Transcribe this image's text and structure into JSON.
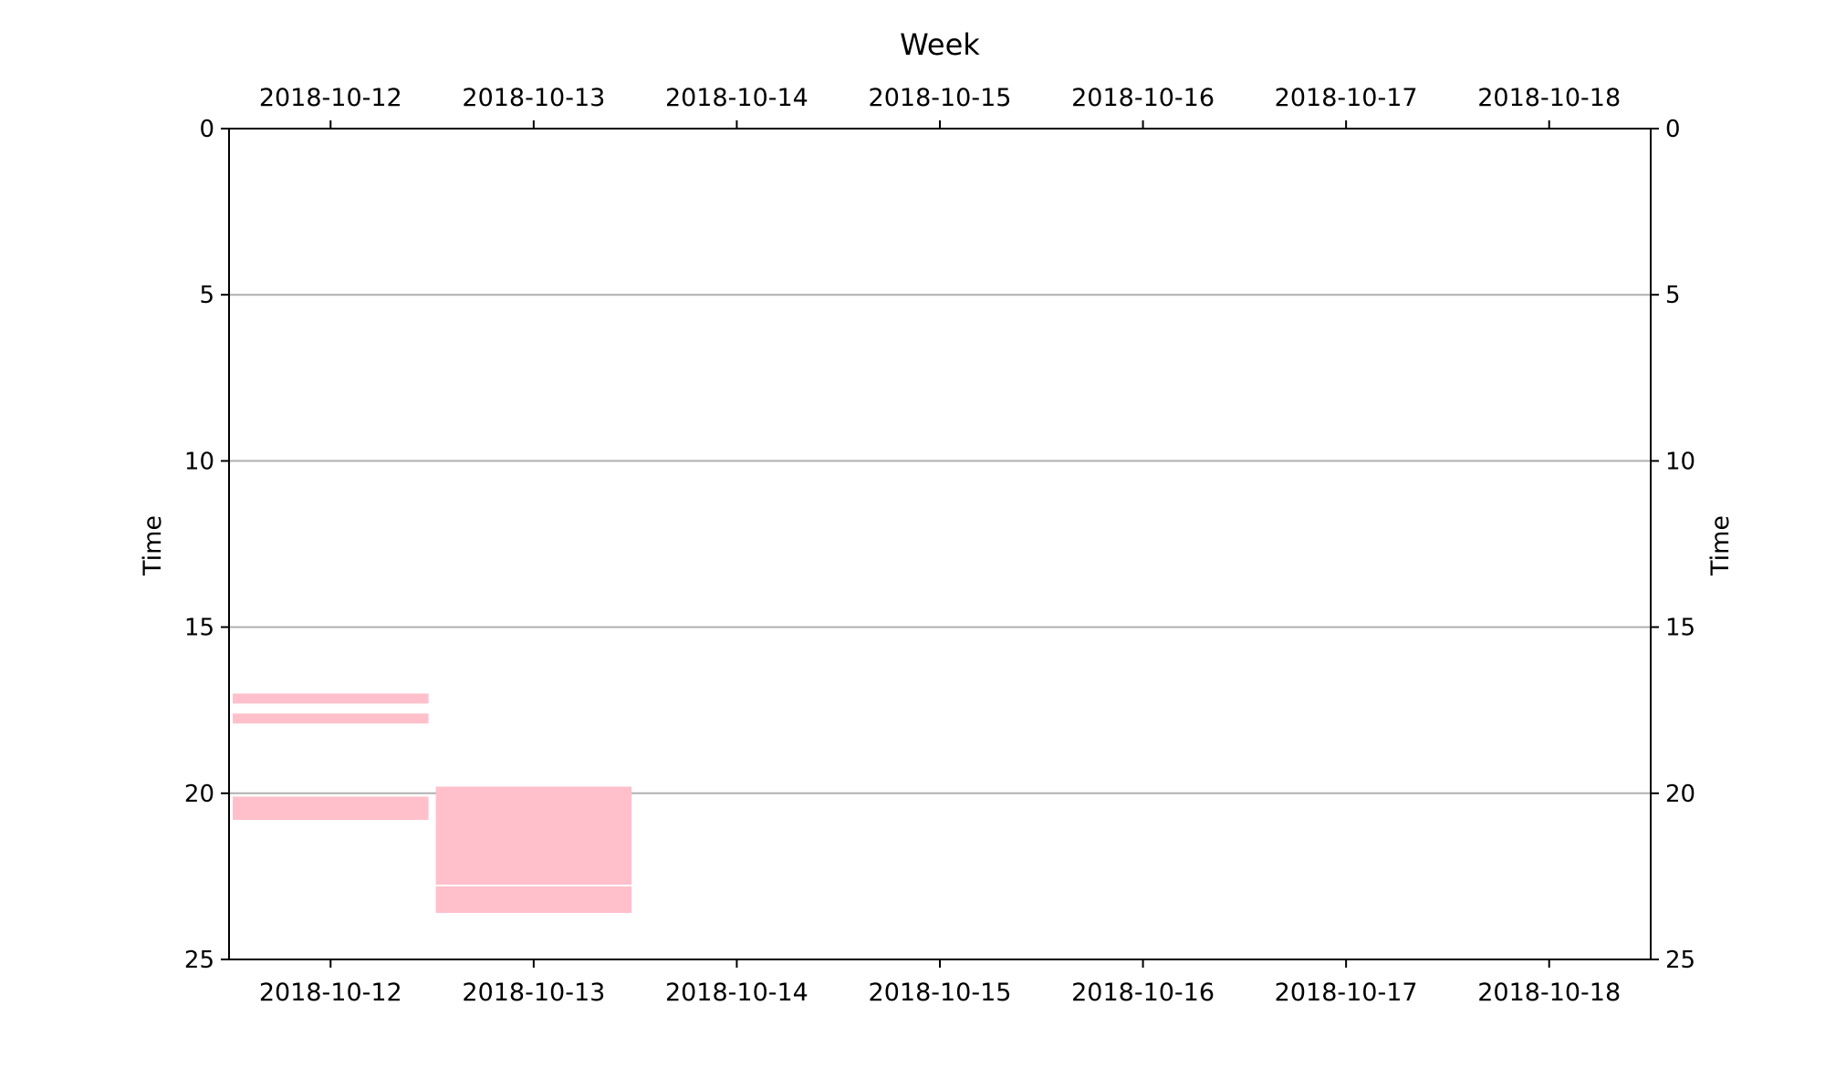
{
  "chart_data": {
    "type": "bar",
    "title": "Week",
    "ylabel": "Time",
    "ylabel_right": "Time",
    "categories": [
      "2018-10-12",
      "2018-10-13",
      "2018-10-14",
      "2018-10-15",
      "2018-10-16",
      "2018-10-17",
      "2018-10-18"
    ],
    "xlim": [
      "2018-10-11 12:00",
      "2018-10-18 12:00"
    ],
    "ylim": [
      0,
      25
    ],
    "y_inverted": true,
    "yticks": [
      0,
      5,
      10,
      15,
      20,
      25
    ],
    "grid": "horizontal",
    "bar_color": "#ffc0cb",
    "events": [
      {
        "day": "2018-10-12",
        "start": 17.0,
        "end": 17.3
      },
      {
        "day": "2018-10-12",
        "start": 17.6,
        "end": 17.9
      },
      {
        "day": "2018-10-12",
        "start": 20.1,
        "end": 20.8
      },
      {
        "day": "2018-10-13",
        "start": 19.8,
        "end": 22.75
      },
      {
        "day": "2018-10-13",
        "start": 22.8,
        "end": 23.6
      }
    ]
  }
}
